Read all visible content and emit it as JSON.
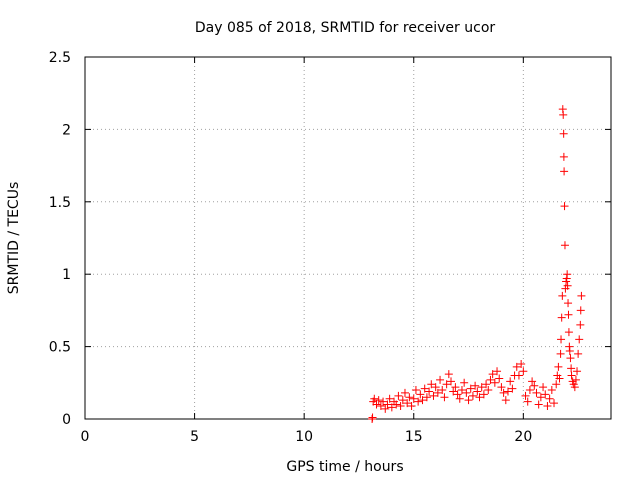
{
  "chart_data": {
    "type": "scatter",
    "title": "Day 085 of 2018, SRMTID for receiver ucor",
    "xlabel": "GPS time / hours",
    "ylabel": "SRMTID / TECUs",
    "xlim": [
      0,
      24
    ],
    "ylim": [
      0,
      2.5
    ],
    "xticks": [
      0,
      5,
      10,
      15,
      20
    ],
    "yticks": [
      0,
      0.5,
      1,
      1.5,
      2,
      2.5
    ],
    "xtick_labels": [
      "0",
      "5",
      "10",
      "15",
      "20"
    ],
    "ytick_labels": [
      "0",
      "0.5",
      "1",
      "1.5",
      "2",
      "2.5"
    ],
    "grid": true,
    "legend": "none",
    "series": [
      {
        "name": "SRMTID",
        "marker": "plus",
        "color": "#ff0000",
        "points": [
          [
            13.1,
            0.0
          ],
          [
            13.12,
            0.01
          ],
          [
            13.15,
            0.12
          ],
          [
            13.2,
            0.14
          ],
          [
            13.3,
            0.1
          ],
          [
            13.4,
            0.13
          ],
          [
            13.5,
            0.09
          ],
          [
            13.6,
            0.12
          ],
          [
            13.7,
            0.07
          ],
          [
            13.8,
            0.1
          ],
          [
            13.9,
            0.14
          ],
          [
            14.0,
            0.08
          ],
          [
            14.1,
            0.12
          ],
          [
            14.2,
            0.1
          ],
          [
            14.3,
            0.16
          ],
          [
            14.4,
            0.09
          ],
          [
            14.5,
            0.13
          ],
          [
            14.6,
            0.18
          ],
          [
            14.7,
            0.11
          ],
          [
            14.8,
            0.15
          ],
          [
            14.9,
            0.09
          ],
          [
            15.0,
            0.14
          ],
          [
            15.1,
            0.2
          ],
          [
            15.2,
            0.12
          ],
          [
            15.3,
            0.17
          ],
          [
            15.4,
            0.13
          ],
          [
            15.5,
            0.21
          ],
          [
            15.6,
            0.15
          ],
          [
            15.7,
            0.19
          ],
          [
            15.8,
            0.24
          ],
          [
            15.9,
            0.16
          ],
          [
            16.0,
            0.22
          ],
          [
            16.1,
            0.18
          ],
          [
            16.2,
            0.27
          ],
          [
            16.3,
            0.2
          ],
          [
            16.4,
            0.15
          ],
          [
            16.5,
            0.24
          ],
          [
            16.6,
            0.31
          ],
          [
            16.7,
            0.26
          ],
          [
            16.8,
            0.19
          ],
          [
            16.9,
            0.22
          ],
          [
            17.0,
            0.17
          ],
          [
            17.1,
            0.14
          ],
          [
            17.2,
            0.2
          ],
          [
            17.3,
            0.25
          ],
          [
            17.4,
            0.18
          ],
          [
            17.5,
            0.13
          ],
          [
            17.6,
            0.21
          ],
          [
            17.7,
            0.16
          ],
          [
            17.8,
            0.23
          ],
          [
            17.9,
            0.19
          ],
          [
            18.0,
            0.15
          ],
          [
            18.1,
            0.22
          ],
          [
            18.2,
            0.17
          ],
          [
            18.3,
            0.24
          ],
          [
            18.4,
            0.2
          ],
          [
            18.5,
            0.27
          ],
          [
            18.6,
            0.31
          ],
          [
            18.7,
            0.25
          ],
          [
            18.8,
            0.33
          ],
          [
            18.9,
            0.28
          ],
          [
            19.0,
            0.22
          ],
          [
            19.1,
            0.18
          ],
          [
            19.2,
            0.13
          ],
          [
            19.3,
            0.19
          ],
          [
            19.4,
            0.26
          ],
          [
            19.5,
            0.21
          ],
          [
            19.6,
            0.3
          ],
          [
            19.7,
            0.36
          ],
          [
            19.8,
            0.3
          ],
          [
            19.9,
            0.38
          ],
          [
            20.0,
            0.33
          ],
          [
            20.1,
            0.16
          ],
          [
            20.2,
            0.12
          ],
          [
            20.3,
            0.2
          ],
          [
            20.4,
            0.26
          ],
          [
            20.5,
            0.23
          ],
          [
            20.6,
            0.18
          ],
          [
            20.7,
            0.1
          ],
          [
            20.8,
            0.15
          ],
          [
            20.9,
            0.22
          ],
          [
            21.0,
            0.17
          ],
          [
            21.1,
            0.09
          ],
          [
            21.2,
            0.14
          ],
          [
            21.3,
            0.2
          ],
          [
            21.4,
            0.11
          ],
          [
            21.5,
            0.24
          ],
          [
            21.55,
            0.3
          ],
          [
            21.6,
            0.36
          ],
          [
            21.65,
            0.28
          ],
          [
            21.7,
            0.45
          ],
          [
            21.72,
            0.55
          ],
          [
            21.75,
            0.7
          ],
          [
            21.78,
            0.85
          ],
          [
            21.8,
            2.14
          ],
          [
            21.82,
            2.1
          ],
          [
            21.84,
            1.97
          ],
          [
            21.85,
            1.81
          ],
          [
            21.86,
            1.71
          ],
          [
            21.88,
            1.47
          ],
          [
            21.9,
            1.2
          ],
          [
            21.92,
            0.9
          ],
          [
            21.95,
            0.95
          ],
          [
            21.98,
            0.97
          ],
          [
            22.0,
            1.0
          ],
          [
            22.02,
            0.92
          ],
          [
            22.04,
            0.8
          ],
          [
            22.06,
            0.72
          ],
          [
            22.08,
            0.6
          ],
          [
            22.1,
            0.5
          ],
          [
            22.12,
            0.47
          ],
          [
            22.15,
            0.42
          ],
          [
            22.18,
            0.35
          ],
          [
            22.2,
            0.3
          ],
          [
            22.25,
            0.26
          ],
          [
            22.3,
            0.24
          ],
          [
            22.35,
            0.22
          ],
          [
            22.4,
            0.27
          ],
          [
            22.45,
            0.33
          ],
          [
            22.5,
            0.45
          ],
          [
            22.55,
            0.55
          ],
          [
            22.6,
            0.65
          ],
          [
            22.62,
            0.75
          ],
          [
            22.65,
            0.85
          ]
        ]
      }
    ]
  }
}
